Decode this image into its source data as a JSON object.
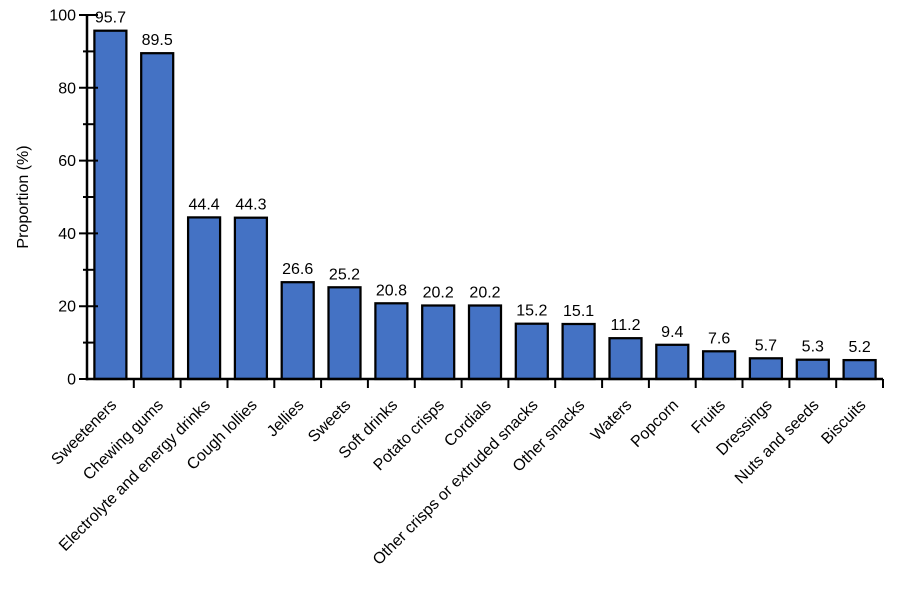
{
  "chart_data": {
    "type": "bar",
    "categories": [
      "Sweeteners",
      "Chewing gums",
      "Electrolyte and energy drinks",
      "Cough lollies",
      "Jellies",
      "Sweets",
      "Soft drinks",
      "Potato crisps",
      "Cordials",
      "Other crisps or extruded snacks",
      "Other snacks",
      "Waters",
      "Popcorn",
      "Fruits",
      "Dressings",
      "Nuts and seeds",
      "Biscuits"
    ],
    "values": [
      95.7,
      89.5,
      44.4,
      44.3,
      26.6,
      25.2,
      20.8,
      20.2,
      20.2,
      15.2,
      15.1,
      11.2,
      9.4,
      7.6,
      5.7,
      5.3,
      5.2
    ],
    "value_labels": [
      "95.7",
      "89.5",
      "44.4",
      "44.3",
      "26.6",
      "25.2",
      "20.8",
      "20.2",
      "20.2",
      "15.2",
      "15.1",
      "11.2",
      "9.4",
      "7.6",
      "5.7",
      "5.3",
      "5.2"
    ],
    "title": "",
    "xlabel": "",
    "ylabel": "Proportion (%)",
    "ylim": [
      0,
      100
    ],
    "yticks_major": [
      0,
      20,
      40,
      60,
      80,
      100
    ],
    "yticks_minor": [
      10,
      30,
      50,
      70,
      90
    ],
    "bar_color": "#4472C4",
    "bar_border_color": "#000000",
    "axis_color": "#000000",
    "text_color": "#000000",
    "grid": "off",
    "legend": "none",
    "x_labels_rotation_deg": -45
  }
}
